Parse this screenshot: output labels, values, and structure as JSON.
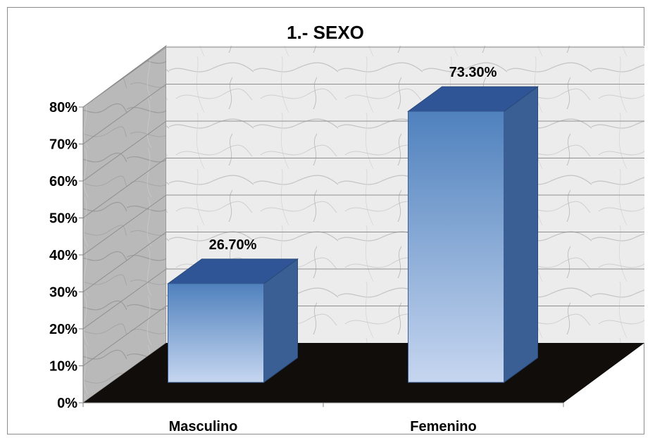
{
  "chart_data": {
    "type": "bar",
    "title": "1.- SEXO",
    "categories": [
      "Masculino",
      "Femenino"
    ],
    "values": [
      26.7,
      73.3
    ],
    "data_labels": [
      "26.70%",
      "73.30%"
    ],
    "ylim": [
      0,
      80
    ],
    "yticks": [
      0,
      10,
      20,
      30,
      40,
      50,
      60,
      70,
      80
    ],
    "ytick_labels": [
      "0%",
      "10%",
      "20%",
      "30%",
      "40%",
      "50%",
      "60%",
      "70%",
      "80%"
    ],
    "xlabel": "",
    "ylabel": "",
    "grid": true,
    "legend": "none",
    "style": "3d-column",
    "colors": {
      "bar_top": "#2f5597",
      "bar_front_top": "#4f81bd",
      "bar_front_bottom": "#c6d6f0",
      "bar_side": "#3a5f95",
      "floor": "#110d0a",
      "wall": "#e9e9e9",
      "side_wall": "#bdbdbd"
    }
  }
}
